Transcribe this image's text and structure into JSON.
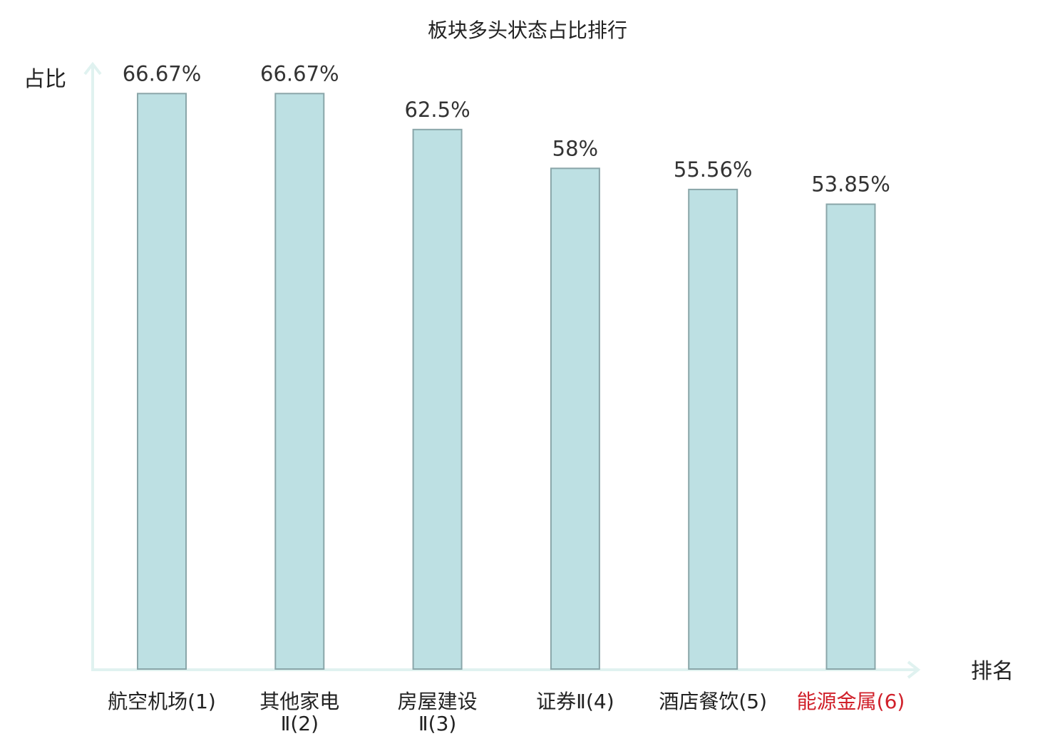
{
  "chart_data": {
    "type": "bar",
    "title": "板块多头状态占比排行",
    "ylabel": "占比",
    "xlabel": "排名",
    "ylim": [
      0,
      70
    ],
    "categories": [
      {
        "line1": "航空机场(1)",
        "line2": ""
      },
      {
        "line1": "其他家电",
        "line2": "Ⅱ(2)"
      },
      {
        "line1": "房屋建设",
        "line2": "Ⅱ(3)"
      },
      {
        "line1": "证券Ⅱ(4)",
        "line2": ""
      },
      {
        "line1": "酒店餐饮(5)",
        "line2": ""
      },
      {
        "line1": "能源金属(6)",
        "line2": ""
      }
    ],
    "values": [
      66.67,
      66.67,
      62.5,
      58,
      55.56,
      53.85
    ],
    "value_labels": [
      "66.67%",
      "66.67%",
      "62.5%",
      "58%",
      "55.56%",
      "53.85%"
    ],
    "highlight_index": 5,
    "colors": {
      "bar_fill": "#bde0e3",
      "bar_stroke": "#8aa6a9",
      "axis": "#e0f2f0",
      "highlight_text": "#d0202a"
    },
    "grid": false,
    "legend": "none"
  }
}
